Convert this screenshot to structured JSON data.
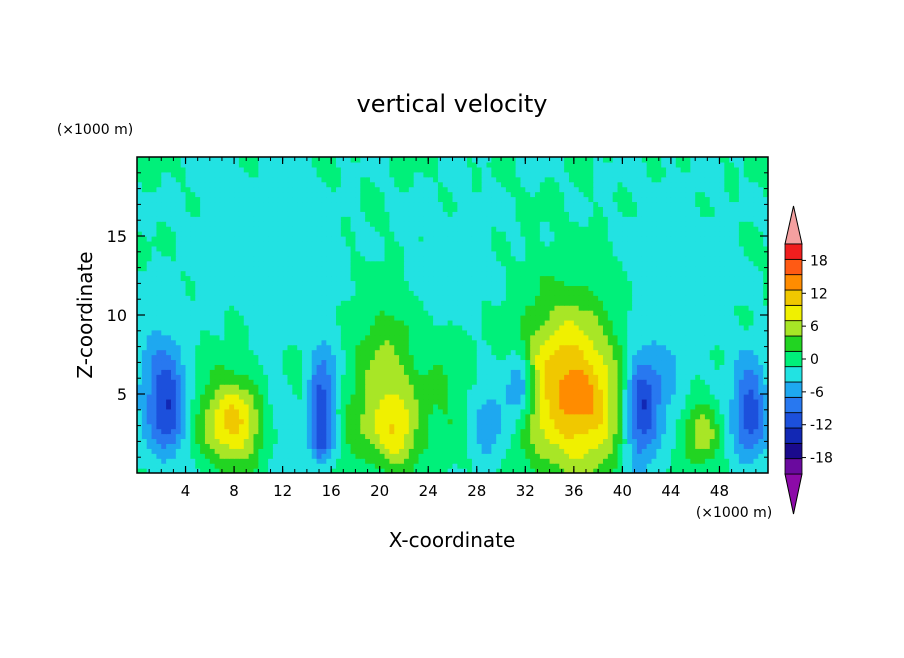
{
  "chart_data": {
    "type": "heatmap",
    "title": "vertical velocity",
    "xlabel": "X-coordinate",
    "ylabel": "Z-coordinate",
    "x_unit": "(×1000 m)",
    "y_unit": "(×1000 m)",
    "xlim": [
      0,
      52
    ],
    "ylim": [
      0,
      20
    ],
    "x_ticks": [
      "4",
      "8",
      "12",
      "16",
      "20",
      "24",
      "28",
      "32",
      "36",
      "40",
      "44",
      "48"
    ],
    "y_ticks": [
      "5",
      "10",
      "15"
    ],
    "colorbar": {
      "orientation": "vertical",
      "extend": "both",
      "levels": [
        -21,
        -18,
        -15,
        -12,
        -9,
        -6,
        -3,
        0,
        3,
        6,
        9,
        12,
        15,
        18,
        21
      ],
      "tick_labels": [
        "18",
        "12",
        "6",
        "0",
        "-6",
        "-12",
        "-18"
      ],
      "tick_values": [
        18,
        12,
        6,
        0,
        -6,
        -12,
        -18
      ],
      "colors": [
        "#6a0a9e",
        "#1a0a8c",
        "#1228b4",
        "#1c50dc",
        "#2878f0",
        "#1ea8f0",
        "#22e2e2",
        "#00f07a",
        "#22d422",
        "#a8e626",
        "#f0f000",
        "#f0c800",
        "#ff8c00",
        "#ff5a14",
        "#f01e1e"
      ],
      "over_color": "#f4a0a0",
      "under_color": "#8c0aa8"
    },
    "cells": [
      {
        "x": 2.5,
        "z": 4.0,
        "sx": 1.2,
        "sz": 2.0,
        "w": -11
      },
      {
        "x": 2.0,
        "z": 7.0,
        "sx": 1.5,
        "sz": 2.5,
        "w": -4
      },
      {
        "x": 8.0,
        "z": 3.0,
        "sx": 1.8,
        "sz": 1.8,
        "w": 11
      },
      {
        "x": 7.0,
        "z": 4.5,
        "sx": 2.2,
        "sz": 2.2,
        "w": 3
      },
      {
        "x": 11.5,
        "z": 3.5,
        "sx": 1.0,
        "sz": 2.0,
        "w": -3
      },
      {
        "x": 15.2,
        "z": 5.0,
        "sx": 0.8,
        "sz": 2.0,
        "w": -10
      },
      {
        "x": 15.2,
        "z": 2.0,
        "sx": 0.6,
        "sz": 1.0,
        "w": -8
      },
      {
        "x": 13.5,
        "z": 6.5,
        "sx": 1.0,
        "sz": 1.5,
        "w": 3
      },
      {
        "x": 20.5,
        "z": 5.5,
        "sx": 1.8,
        "sz": 3.5,
        "w": 8
      },
      {
        "x": 21.5,
        "z": 2.5,
        "sx": 1.2,
        "sz": 1.5,
        "w": 7
      },
      {
        "x": 18.0,
        "z": 3.0,
        "sx": 1.0,
        "sz": 1.5,
        "w": 3
      },
      {
        "x": 25.5,
        "z": 5.0,
        "sx": 1.8,
        "sz": 3.0,
        "w": 3
      },
      {
        "x": 29.0,
        "z": 3.5,
        "sx": 1.2,
        "sz": 2.0,
        "w": -6
      },
      {
        "x": 31.5,
        "z": 5.5,
        "sx": 0.8,
        "sz": 1.5,
        "w": -10
      },
      {
        "x": 35.5,
        "z": 5.5,
        "sx": 2.8,
        "sz": 3.8,
        "w": 15
      },
      {
        "x": 38.0,
        "z": 3.5,
        "sx": 1.8,
        "sz": 2.5,
        "w": 4
      },
      {
        "x": 41.5,
        "z": 4.0,
        "sx": 1.0,
        "sz": 2.5,
        "w": -13
      },
      {
        "x": 43.5,
        "z": 5.5,
        "sx": 1.0,
        "sz": 1.5,
        "w": -4
      },
      {
        "x": 46.5,
        "z": 2.5,
        "sx": 1.0,
        "sz": 1.5,
        "w": 8
      },
      {
        "x": 50.5,
        "z": 4.0,
        "sx": 1.0,
        "sz": 2.2,
        "w": -11
      },
      {
        "x": 13.0,
        "z": 11.0,
        "sx": 2.5,
        "sz": 4.0,
        "w": -2
      },
      {
        "x": 26.0,
        "z": 13.0,
        "sx": 3.0,
        "sz": 3.0,
        "w": -1.5
      },
      {
        "x": 44.0,
        "z": 12.0,
        "sx": 3.0,
        "sz": 4.0,
        "w": -2
      },
      {
        "x": 8.0,
        "z": 15.0,
        "sx": 3.0,
        "sz": 3.0,
        "w": -1.2
      }
    ]
  }
}
